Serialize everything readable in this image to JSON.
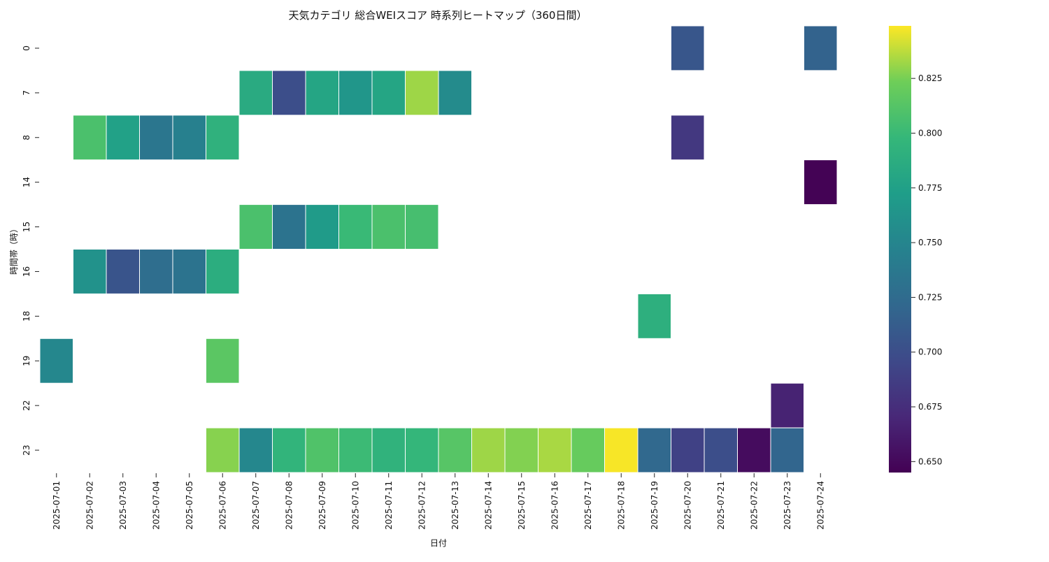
{
  "chart_data": {
    "type": "heatmap",
    "title": "天気カテゴリ 総合WEIスコア 時系列ヒートマップ（360日間）",
    "xlabel": "日付",
    "ylabel": "時間帯（時）",
    "x": [
      "2025-07-01",
      "2025-07-02",
      "2025-07-03",
      "2025-07-04",
      "2025-07-05",
      "2025-07-06",
      "2025-07-07",
      "2025-07-08",
      "2025-07-09",
      "2025-07-10",
      "2025-07-11",
      "2025-07-12",
      "2025-07-13",
      "2025-07-14",
      "2025-07-15",
      "2025-07-16",
      "2025-07-17",
      "2025-07-18",
      "2025-07-19",
      "2025-07-20",
      "2025-07-21",
      "2025-07-22",
      "2025-07-23",
      "2025-07-24"
    ],
    "y": [
      "0",
      "7",
      "8",
      "14",
      "15",
      "16",
      "18",
      "19",
      "22",
      "23"
    ],
    "colormap": "viridis",
    "colorbar": {
      "min": 0.645,
      "max": 0.849,
      "ticks": [
        0.65,
        0.675,
        0.7,
        0.725,
        0.75,
        0.775,
        0.8,
        0.825
      ],
      "tick_labels": [
        "0.650",
        "0.675",
        "0.700",
        "0.725",
        "0.750",
        "0.775",
        "0.800",
        "0.825"
      ]
    },
    "grid": false,
    "cell_border_color": "#ffffff",
    "cells": [
      {
        "x": "2025-07-20",
        "y": "0",
        "value": 0.707
      },
      {
        "x": "2025-07-24",
        "y": "0",
        "value": 0.717
      },
      {
        "x": "2025-07-07",
        "y": "7",
        "value": 0.785
      },
      {
        "x": "2025-07-08",
        "y": "7",
        "value": 0.7
      },
      {
        "x": "2025-07-09",
        "y": "7",
        "value": 0.78
      },
      {
        "x": "2025-07-10",
        "y": "7",
        "value": 0.765
      },
      {
        "x": "2025-07-11",
        "y": "7",
        "value": 0.78
      },
      {
        "x": "2025-07-12",
        "y": "7",
        "value": 0.832
      },
      {
        "x": "2025-07-13",
        "y": "7",
        "value": 0.755
      },
      {
        "x": "2025-07-02",
        "y": "8",
        "value": 0.808
      },
      {
        "x": "2025-07-03",
        "y": "8",
        "value": 0.776
      },
      {
        "x": "2025-07-04",
        "y": "8",
        "value": 0.735
      },
      {
        "x": "2025-07-05",
        "y": "8",
        "value": 0.745
      },
      {
        "x": "2025-07-06",
        "y": "8",
        "value": 0.792
      },
      {
        "x": "2025-07-20",
        "y": "8",
        "value": 0.683
      },
      {
        "x": "2025-07-24",
        "y": "14",
        "value": 0.646
      },
      {
        "x": "2025-07-07",
        "y": "15",
        "value": 0.808
      },
      {
        "x": "2025-07-08",
        "y": "15",
        "value": 0.732
      },
      {
        "x": "2025-07-09",
        "y": "15",
        "value": 0.77
      },
      {
        "x": "2025-07-10",
        "y": "15",
        "value": 0.8
      },
      {
        "x": "2025-07-11",
        "y": "15",
        "value": 0.808
      },
      {
        "x": "2025-07-12",
        "y": "15",
        "value": 0.806
      },
      {
        "x": "2025-07-02",
        "y": "16",
        "value": 0.762
      },
      {
        "x": "2025-07-03",
        "y": "16",
        "value": 0.705
      },
      {
        "x": "2025-07-04",
        "y": "16",
        "value": 0.727
      },
      {
        "x": "2025-07-05",
        "y": "16",
        "value": 0.732
      },
      {
        "x": "2025-07-06",
        "y": "16",
        "value": 0.788
      },
      {
        "x": "2025-07-19",
        "y": "18",
        "value": 0.79
      },
      {
        "x": "2025-07-01",
        "y": "19",
        "value": 0.752
      },
      {
        "x": "2025-07-06",
        "y": "19",
        "value": 0.815
      },
      {
        "x": "2025-07-23",
        "y": "22",
        "value": 0.667
      },
      {
        "x": "2025-07-06",
        "y": "23",
        "value": 0.828
      },
      {
        "x": "2025-07-07",
        "y": "23",
        "value": 0.752
      },
      {
        "x": "2025-07-08",
        "y": "23",
        "value": 0.795
      },
      {
        "x": "2025-07-09",
        "y": "23",
        "value": 0.81
      },
      {
        "x": "2025-07-10",
        "y": "23",
        "value": 0.801
      },
      {
        "x": "2025-07-11",
        "y": "23",
        "value": 0.793
      },
      {
        "x": "2025-07-12",
        "y": "23",
        "value": 0.797
      },
      {
        "x": "2025-07-13",
        "y": "23",
        "value": 0.813
      },
      {
        "x": "2025-07-14",
        "y": "23",
        "value": 0.832
      },
      {
        "x": "2025-07-15",
        "y": "23",
        "value": 0.827
      },
      {
        "x": "2025-07-16",
        "y": "23",
        "value": 0.834
      },
      {
        "x": "2025-07-17",
        "y": "23",
        "value": 0.82
      },
      {
        "x": "2025-07-18",
        "y": "23",
        "value": 0.848
      },
      {
        "x": "2025-07-19",
        "y": "23",
        "value": 0.722
      },
      {
        "x": "2025-07-20",
        "y": "23",
        "value": 0.69
      },
      {
        "x": "2025-07-21",
        "y": "23",
        "value": 0.7
      },
      {
        "x": "2025-07-22",
        "y": "23",
        "value": 0.652
      },
      {
        "x": "2025-07-23",
        "y": "23",
        "value": 0.72
      }
    ]
  }
}
